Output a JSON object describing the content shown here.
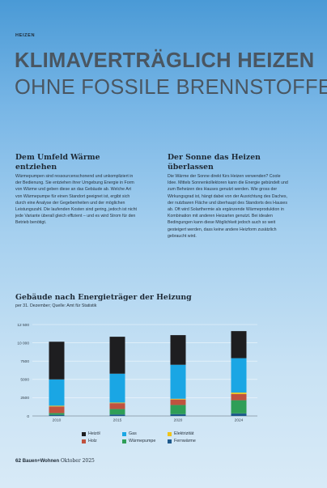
{
  "kicker": "HEIZEN",
  "headline": {
    "line1": "KLIMAVERTRÄGLICH HEIZEN",
    "line2": "OHNE FOSSILE BRENNSTOFFE"
  },
  "columns": [
    {
      "title": "Dem Umfeld Wärme entziehen",
      "text": "Wärmepumpen sind ressourcenschonend und unkompliziert in der Bedienung. Sie entziehen ihrer Umgebung Energie in Form von Wärme und geben diese an das Gebäude ab. Welche Art von Wärmepumpe für einen Standort geeignet ist, ergibt sich durch eine Analyse der Gegebenheiten und der möglichen Leistungszahl. Die laufenden Kosten sind gering, jedoch ist nicht jede Variante überall gleich effizient – und es wird Strom für den Betrieb benötigt."
    },
    {
      "title": "Der Sonne das Heizen überlassen",
      "text": "Die Wärme der Sonne direkt fürs Heizen verwenden? Coole Idee. Mittels Sonnenkollektoren kann die Energie gebündelt und zum Beheizen des Hauses genutzt werden. Wie gross der Wirkungsgrad ist, hängt dabei von der Ausrichtung des Daches, der nutzbaren Fläche und überhaupt des Standorts des Hauses ab. Oft wird Solarthermie als ergänzende Wärmeproduktion in Kombination mit anderen Heizarten genutzt. Bei idealen Bedingungen kann diese Möglichkeit jedoch auch so weit gesteigert werden, dass keine andere Heizform zusätzlich gebraucht wird."
    }
  ],
  "chart_data": {
    "type": "bar",
    "stacked": true,
    "title": "Gebäude nach Energieträger der Heizung",
    "subtitle": "per 31. Dezember; Quelle: Amt für Statistik",
    "categories": [
      "2010",
      "2015",
      "2020",
      "2024"
    ],
    "yticks": [
      "12 500",
      "10 000",
      "7500",
      "5000",
      "2500",
      "0"
    ],
    "ylim": [
      0,
      12500
    ],
    "grid": true,
    "legend_position": "bottom",
    "series": [
      {
        "name": "Fernwärme",
        "color": "#1f5a8c",
        "values": [
          150,
          200,
          250,
          350
        ]
      },
      {
        "name": "Wärmepumpe",
        "color": "#2f9e57",
        "values": [
          250,
          750,
          1250,
          1800
        ]
      },
      {
        "name": "Holz",
        "color": "#c0523f",
        "values": [
          900,
          800,
          750,
          850
        ]
      },
      {
        "name": "Elektrizität",
        "color": "#f0c419",
        "values": [
          100,
          80,
          100,
          200
        ]
      },
      {
        "name": "Gas",
        "color": "#1aa6e4",
        "values": [
          3600,
          3950,
          4650,
          4700
        ]
      },
      {
        "name": "Heizöl",
        "color": "#1e1e20",
        "values": [
          5150,
          5050,
          4050,
          3700
        ]
      }
    ],
    "legend_order": [
      "Heizöl",
      "Gas",
      "Elektrizität",
      "Holz",
      "Wärmepumpe",
      "Fernwärme"
    ]
  },
  "footer": {
    "page": "62",
    "magazine": "Bauen+Wohnen",
    "issue": "Oktober 2025"
  }
}
